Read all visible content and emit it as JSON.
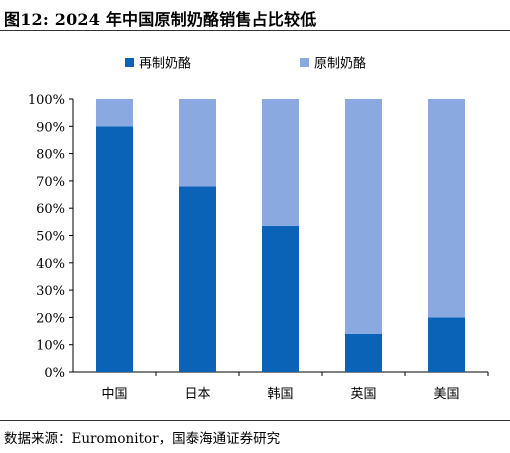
{
  "title": "图12:  2024 年中国原制奶酪销售占比较低",
  "source": "数据来源：Euromonitor，国泰海通证券研究",
  "colors": {
    "reprocessed": "#0a63b7",
    "natural": "#8aa9e0"
  },
  "chart_data": {
    "type": "bar",
    "stacked": true,
    "categories": [
      "中国",
      "日本",
      "韩国",
      "英国",
      "美国"
    ],
    "series": [
      {
        "name": "再制奶酪",
        "values": [
          90,
          68,
          53.5,
          14,
          20
        ]
      },
      {
        "name": "原制奶酪",
        "values": [
          10,
          32,
          46.5,
          86,
          80
        ]
      }
    ],
    "ylim": [
      0,
      100
    ],
    "yticks": [
      "0%",
      "10%",
      "20%",
      "30%",
      "40%",
      "50%",
      "60%",
      "70%",
      "80%",
      "90%",
      "100%"
    ],
    "legend_position": "top-center",
    "grid": false
  }
}
